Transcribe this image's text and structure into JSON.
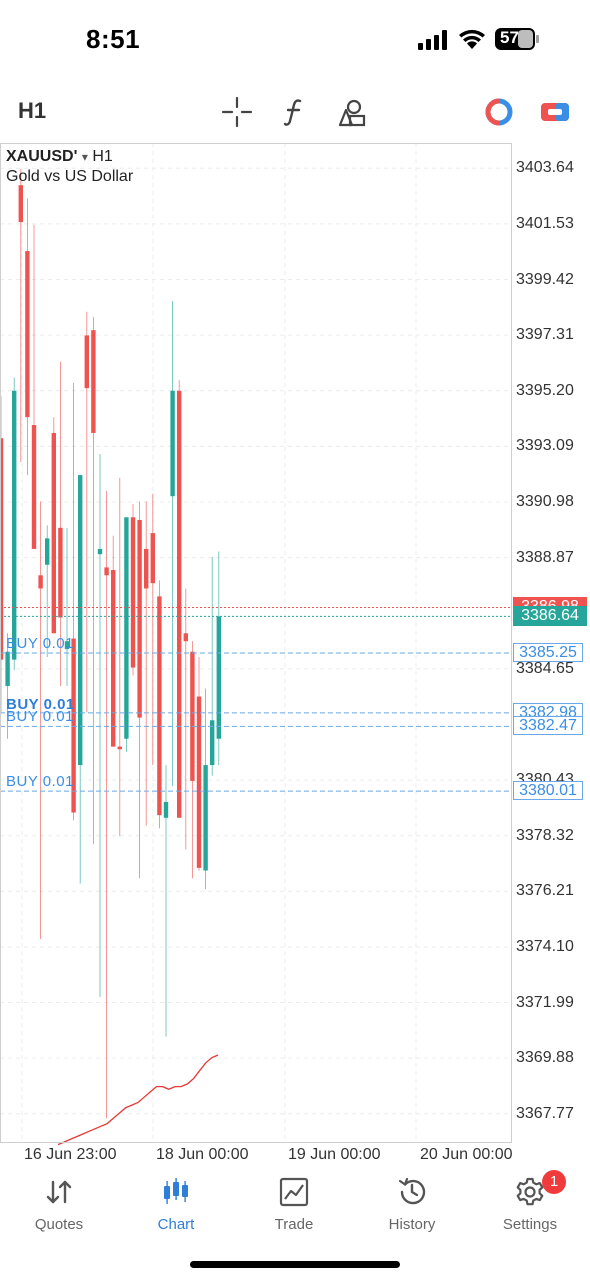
{
  "status": {
    "time": "8:51",
    "battery": "57"
  },
  "toolbar": {
    "timeframe": "H1",
    "icons": [
      "crosshair-icon",
      "function-icon",
      "objects-icon",
      "trade-toggle-icon",
      "one-click-trading-icon"
    ]
  },
  "chart": {
    "symbol": "XAUUSD'",
    "symbol_caret": "▾",
    "timeframe": "H1",
    "description": "Gold vs US Dollar",
    "price_scale": [
      "3403.64",
      "3401.53",
      "3399.42",
      "3397.31",
      "3395.20",
      "3393.09",
      "3390.98",
      "3388.87",
      "3384.65",
      "3380.43",
      "3378.32",
      "3376.21",
      "3374.10",
      "3371.99",
      "3369.88",
      "3367.77"
    ],
    "time_scale": [
      "16 Jun 23:00",
      "18 Jun 00:00",
      "19 Jun 00:00",
      "20 Jun 00:00"
    ],
    "ask_price": "3386.98",
    "bid_price": "3386.64",
    "orders": [
      {
        "label": "BUY 0.01",
        "price": "3385.25"
      },
      {
        "label": "BUY 0.01",
        "price": "3382.98"
      },
      {
        "label": "BUY 0.01",
        "price": "3382.47"
      },
      {
        "label": "BUY 0.01",
        "price": "3380.01"
      }
    ],
    "colors": {
      "bull": "#26a69a",
      "bear": "#ef5350",
      "order_line": "#6aa8ea",
      "indicator": "#e53935"
    }
  },
  "chart_data": {
    "type": "candlestick",
    "ylim": [
      3366.7,
      3404.6
    ],
    "candles": [
      {
        "o": 3393.4,
        "h": 3395.0,
        "l": 3383.0,
        "c": 3385.0
      },
      {
        "o": 3384.0,
        "h": 3386.0,
        "l": 3382.0,
        "c": 3385.3
      },
      {
        "o": 3385.0,
        "h": 3395.7,
        "l": 3384.6,
        "c": 3395.2
      },
      {
        "o": 3403.0,
        "h": 3403.6,
        "l": 3392.5,
        "c": 3401.6
      },
      {
        "o": 3400.5,
        "h": 3402.5,
        "l": 3392.0,
        "c": 3394.2
      },
      {
        "o": 3393.9,
        "h": 3401.5,
        "l": 3389.2,
        "c": 3389.2
      },
      {
        "o": 3388.2,
        "h": 3391.0,
        "l": 3374.4,
        "c": 3387.7
      },
      {
        "o": 3388.6,
        "h": 3390.1,
        "l": 3385.1,
        "c": 3389.6
      },
      {
        "o": 3393.6,
        "h": 3394.2,
        "l": 3386.0,
        "c": 3386.0
      },
      {
        "o": 3390.0,
        "h": 3396.3,
        "l": 3384.0,
        "c": 3386.6
      },
      {
        "o": 3385.4,
        "h": 3390.0,
        "l": 3384.0,
        "c": 3385.7
      },
      {
        "o": 3385.8,
        "h": 3395.5,
        "l": 3378.9,
        "c": 3379.2
      },
      {
        "o": 3381.0,
        "h": 3392.0,
        "l": 3376.5,
        "c": 3392.0
      },
      {
        "o": 3397.3,
        "h": 3398.2,
        "l": 3383.0,
        "c": 3395.3
      },
      {
        "o": 3397.5,
        "h": 3398.0,
        "l": 3378.0,
        "c": 3393.6
      },
      {
        "o": 3389.0,
        "h": 3392.8,
        "l": 3372.2,
        "c": 3389.2
      },
      {
        "o": 3388.5,
        "h": 3391.4,
        "l": 3367.6,
        "c": 3388.2
      },
      {
        "o": 3388.4,
        "h": 3389.7,
        "l": 3381.7,
        "c": 3381.7
      },
      {
        "o": 3381.7,
        "h": 3391.9,
        "l": 3378.3,
        "c": 3381.6
      },
      {
        "o": 3382.0,
        "h": 3390.4,
        "l": 3381.5,
        "c": 3390.4
      },
      {
        "o": 3390.4,
        "h": 3390.9,
        "l": 3384.4,
        "c": 3384.7
      },
      {
        "o": 3390.3,
        "h": 3391.0,
        "l": 3376.7,
        "c": 3382.8
      },
      {
        "o": 3389.2,
        "h": 3391.0,
        "l": 3378.7,
        "c": 3387.7
      },
      {
        "o": 3389.8,
        "h": 3391.3,
        "l": 3381.0,
        "c": 3387.9
      },
      {
        "o": 3387.4,
        "h": 3388.0,
        "l": 3378.6,
        "c": 3379.1
      },
      {
        "o": 3379.0,
        "h": 3381.0,
        "l": 3370.7,
        "c": 3379.6
      },
      {
        "o": 3391.2,
        "h": 3398.6,
        "l": 3380.2,
        "c": 3395.2
      },
      {
        "o": 3395.2,
        "h": 3395.6,
        "l": 3379.0,
        "c": 3379.0
      },
      {
        "o": 3386.0,
        "h": 3387.7,
        "l": 3377.8,
        "c": 3385.7
      },
      {
        "o": 3385.3,
        "h": 3385.7,
        "l": 3376.7,
        "c": 3380.4
      },
      {
        "o": 3383.6,
        "h": 3385.1,
        "l": 3377.0,
        "c": 3377.1
      },
      {
        "o": 3377.0,
        "h": 3383.9,
        "l": 3376.3,
        "c": 3381.0
      },
      {
        "o": 3381.0,
        "h": 3388.9,
        "l": 3380.6,
        "c": 3382.7
      },
      {
        "o": 3382.0,
        "h": 3389.1,
        "l": 3381.0,
        "c": 3386.64
      }
    ],
    "indicator": [
      3366.6,
      3366.7,
      3366.8,
      3366.9,
      3367.0,
      3367.1,
      3367.2,
      3367.3,
      3367.4,
      3367.6,
      3367.8,
      3368.0,
      3368.1,
      3368.2,
      3368.4,
      3368.6,
      3368.8,
      3368.8,
      3368.7,
      3368.8,
      3368.8,
      3368.9,
      3369.1,
      3369.4,
      3369.7,
      3369.9,
      3370.0
    ]
  },
  "nav": {
    "items": [
      {
        "label": "Quotes",
        "icon": "quotes-icon"
      },
      {
        "label": "Chart",
        "icon": "chart-icon"
      },
      {
        "label": "Trade",
        "icon": "trade-icon"
      },
      {
        "label": "History",
        "icon": "history-icon"
      },
      {
        "label": "Settings",
        "icon": "settings-icon"
      }
    ],
    "active": "Chart",
    "settings_badge": "1"
  }
}
